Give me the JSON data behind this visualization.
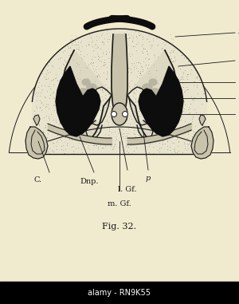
{
  "bg_color": "#f0ebcf",
  "fig_width": 3.0,
  "fig_height": 3.81,
  "dpi": 100,
  "title": "Fig. 32.",
  "title_fontsize": 8,
  "label_N": "N",
  "label_C": "C.",
  "label_Dnp": "Dnp.",
  "label_p": "p",
  "label_lGf": "l. Gf.",
  "label_mGf": "m. Gf.",
  "line_color": "#1a1a1a",
  "stipple_color": "#8a8070",
  "fill_bone": "#d8d3bc",
  "fill_dark": "#0d0d0d",
  "fill_gray_light": "#c8c3aa",
  "fill_white_ish": "#f0ece0"
}
